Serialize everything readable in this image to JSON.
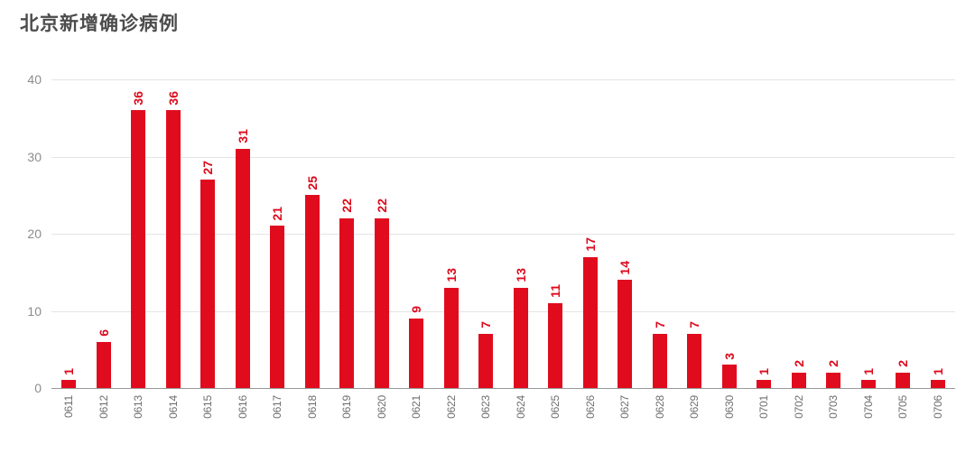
{
  "title": "北京新增确诊病例",
  "colors": {
    "background": "#ffffff",
    "title": "#4c4c4c",
    "bar": "#e00c1e",
    "value_label": "#dc0a1c",
    "y_axis_label": "#8c8c8c",
    "x_axis_label": "#6e6e6e",
    "gridline": "#e4e4e4",
    "axis_line": "#999999"
  },
  "chart_data": {
    "type": "bar",
    "title": "北京新增确诊病例",
    "categories": [
      "0611",
      "0612",
      "0613",
      "0614",
      "0615",
      "0616",
      "0617",
      "0618",
      "0619",
      "0620",
      "0621",
      "0622",
      "0623",
      "0624",
      "0625",
      "0626",
      "0627",
      "0628",
      "0629",
      "0630",
      "0701",
      "0702",
      "0703",
      "0704",
      "0705",
      "0706"
    ],
    "values": [
      1,
      6,
      36,
      36,
      27,
      31,
      21,
      25,
      22,
      22,
      9,
      13,
      7,
      13,
      11,
      17,
      14,
      7,
      7,
      3,
      1,
      2,
      2,
      1,
      2,
      1
    ],
    "y_ticks": [
      0,
      10,
      20,
      30,
      40
    ],
    "ylim": [
      0,
      40
    ],
    "xlabel": "",
    "ylabel": "",
    "grid": true,
    "legend": "none",
    "value_labels_shown": true,
    "tick_label_rotation": "vertical"
  }
}
